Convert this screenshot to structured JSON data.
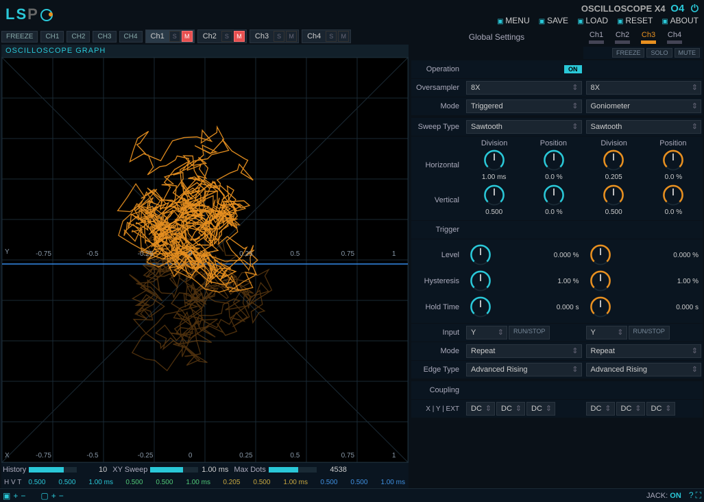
{
  "app": {
    "title": "OSCILLOSCOPE X4",
    "variant": "O4"
  },
  "menu": {
    "menu": "MENU",
    "save": "SAVE",
    "load": "LOAD",
    "reset": "RESET",
    "about": "ABOUT"
  },
  "logo": {
    "text1": "LS",
    "text2": "P"
  },
  "chbar": {
    "freeze": "FREEZE",
    "chs": [
      "CH1",
      "CH2",
      "CH3",
      "CH4"
    ],
    "groups": [
      {
        "name": "Ch1",
        "s": false,
        "m": true,
        "sel": true
      },
      {
        "name": "Ch2",
        "s": false,
        "m": true,
        "sel": false
      },
      {
        "name": "Ch3",
        "s": false,
        "m": false,
        "sel": false
      },
      {
        "name": "Ch4",
        "s": false,
        "m": false,
        "sel": false
      }
    ]
  },
  "graph": {
    "title": "OSCILLOSCOPE GRAPH",
    "xticks": [
      "-0.75",
      "-0.5",
      "-0.25",
      "0",
      "0.25",
      "0.5",
      "0.75",
      "1"
    ],
    "ylabel": "Y",
    "xlabel": "X",
    "trace_color_bright": "#e89020",
    "trace_color_dim": "#8a5518",
    "grid_color": "#1a2a35",
    "axis_color": "#3a4a58",
    "sweep_color": "#3080d8",
    "bg": "#000000"
  },
  "sliders": {
    "history": {
      "label": "History",
      "value": "10",
      "fill": 72
    },
    "xysweep": {
      "label": "XY Sweep",
      "value": "1.00 ms",
      "fill": 68
    },
    "maxdots": {
      "label": "Max Dots",
      "value": "4538",
      "fill": 62
    }
  },
  "stat": {
    "hvt": "H  V  T",
    "rows": [
      {
        "color": "c-teal",
        "vals": [
          "0.500",
          "0.500",
          "1.00 ms"
        ]
      },
      {
        "color": "c-green",
        "vals": [
          "0.500",
          "0.500",
          "1.00 ms"
        ]
      },
      {
        "color": "c-yellow",
        "vals": [
          "0.205",
          "0.500",
          "1.00 ms"
        ]
      },
      {
        "color": "c-blue",
        "vals": [
          "0.500",
          "0.500",
          "1.00 ms"
        ]
      }
    ]
  },
  "right": {
    "global": "Global Settings",
    "tabs": [
      "Ch1",
      "Ch2",
      "Ch3",
      "Ch4"
    ],
    "active_tab": 2,
    "btns": {
      "freeze": "FREEZE",
      "solo": "SOLO",
      "mute": "MUTE"
    },
    "rows": {
      "operation": {
        "label": "Operation",
        "on": "ON"
      },
      "oversampler": {
        "label": "Oversampler",
        "a": "8X",
        "b": "8X"
      },
      "mode": {
        "label": "Mode",
        "a": "Triggered",
        "b": "Goniometer"
      },
      "sweeptype": {
        "label": "Sweep Type",
        "a": "Sawtooth",
        "b": "Sawtooth"
      },
      "horizontal": {
        "label": "Horizontal"
      },
      "vertical": {
        "label": "Vertical"
      },
      "trigger": {
        "label": "Trigger"
      },
      "level": {
        "label": "Level"
      },
      "hysteresis": {
        "label": "Hysteresis"
      },
      "holdtime": {
        "label": "Hold Time"
      },
      "input": {
        "label": "Input",
        "a": "Y",
        "b": "Y",
        "run": "RUN/STOP"
      },
      "triggermode": {
        "label": "Mode",
        "a": "Repeat",
        "b": "Repeat"
      },
      "edgetype": {
        "label": "Edge Type",
        "a": "Advanced Rising",
        "b": "Advanced Rising"
      },
      "coupling": {
        "label": "Coupling",
        "xy": "X  |  Y  |  EXT",
        "dc": "DC"
      }
    },
    "knob_headers": {
      "division": "Division",
      "position": "Position"
    },
    "knobs": {
      "horiz": {
        "a_div": "1.00 ms",
        "a_pos": "0.0 %",
        "b_div": "0.205",
        "b_pos": "0.0 %"
      },
      "vert": {
        "a_div": "0.500",
        "a_pos": "0.0 %",
        "b_div": "0.500",
        "b_pos": "0.0 %"
      },
      "level": {
        "a": "0.000 %",
        "b": "0.000 %"
      },
      "hyst": {
        "a": "1.00 %",
        "b": "1.00 %"
      },
      "hold": {
        "a": "0.000 s",
        "b": "0.000 s"
      }
    },
    "knob_colors": {
      "a": "#2ac8d8",
      "b": "#e89020"
    }
  },
  "footer": {
    "jack_label": "JACK:",
    "jack": "ON"
  }
}
